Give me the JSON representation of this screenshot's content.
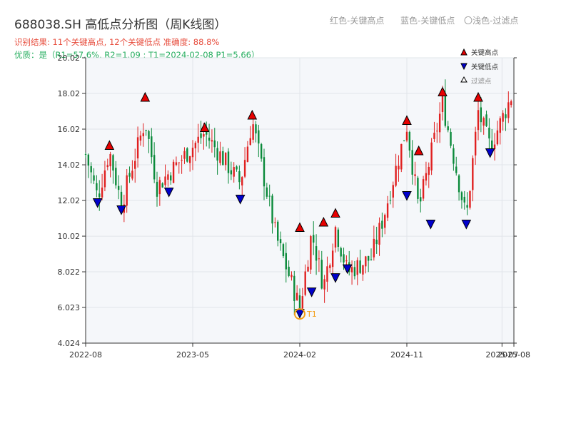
{
  "header": {
    "title": "688038.SH 高低点分析图（周K线图）",
    "legend_red": "红色-关键高点",
    "legend_blue": "蓝色-关键低点",
    "legend_light": "〇浅色-过滤点",
    "result_line": "识别结果: 11个关键高点, 12个关键低点   准确度: 88.8%",
    "quality_line": "优质：是（R1=57.6%, R2=1.09 ; T1=2024-02-08 P1=5.66）"
  },
  "legend": {
    "high_label": "关键高点",
    "low_label": "关键低点",
    "filtered_label": "过滤点"
  },
  "colors": {
    "up": "#e02020",
    "down": "#0a8a3a",
    "high_marker": "#e60000",
    "low_marker": "#0000cc",
    "t1_marker": "#f39c12",
    "plot_bg": "#f5f7fa"
  },
  "chart_data": {
    "type": "candlestick",
    "ylim": [
      4.024,
      20.02
    ],
    "y_ticks": [
      "4.024",
      "6.023",
      "8.022",
      "10.02",
      "12.02",
      "14.02",
      "16.02",
      "18.02",
      "20.02"
    ],
    "x_range": [
      "2022-08",
      "2025-08"
    ],
    "x_ticks": [
      "2022-08",
      "2023-05",
      "2024-02",
      "2024-11",
      "2025-07",
      "2025-08"
    ],
    "price_path": [
      [
        "2022-08",
        14.6
      ],
      [
        "2022-09",
        12.2
      ],
      [
        "2022-10",
        14.8
      ],
      [
        "2022-11",
        11.8
      ],
      [
        "2023-01",
        16.5
      ],
      [
        "2023-02",
        12.8
      ],
      [
        "2023-06",
        15.8
      ],
      [
        "2023-09",
        13.0
      ],
      [
        "2023-10",
        16.5
      ],
      [
        "2023-12",
        10.0
      ],
      [
        "2024-02",
        6.0
      ],
      [
        "2024-03",
        10.2
      ],
      [
        "2024-04",
        7.2
      ],
      [
        "2024-05",
        10.5
      ],
      [
        "2024-06",
        8.0
      ],
      [
        "2024-08",
        8.8
      ],
      [
        "2024-09",
        11.0
      ],
      [
        "2024-11",
        16.2
      ],
      [
        "2024-12",
        11.5
      ],
      [
        "2025-02",
        17.5
      ],
      [
        "2025-04",
        11.0
      ],
      [
        "2025-05",
        17.0
      ],
      [
        "2025-06",
        15.0
      ],
      [
        "2025-08",
        18.2
      ]
    ],
    "key_highs": [
      {
        "date": "2022-10",
        "price": 14.8
      },
      {
        "date": "2023-01",
        "price": 17.5
      },
      {
        "date": "2023-06",
        "price": 15.8
      },
      {
        "date": "2023-10",
        "price": 16.5
      },
      {
        "date": "2024-02",
        "price": 10.2
      },
      {
        "date": "2024-04",
        "price": 10.5
      },
      {
        "date": "2024-05",
        "price": 11.0
      },
      {
        "date": "2024-11",
        "price": 16.2
      },
      {
        "date": "2024-12",
        "price": 14.5
      },
      {
        "date": "2025-02",
        "price": 17.8
      },
      {
        "date": "2025-05",
        "price": 17.5
      }
    ],
    "key_lows": [
      {
        "date": "2022-09",
        "price": 12.2
      },
      {
        "date": "2022-11",
        "price": 11.8
      },
      {
        "date": "2023-03",
        "price": 12.8
      },
      {
        "date": "2023-09",
        "price": 12.4
      },
      {
        "date": "2024-02",
        "price": 6.0
      },
      {
        "date": "2024-03",
        "price": 7.2
      },
      {
        "date": "2024-05",
        "price": 8.0
      },
      {
        "date": "2024-06",
        "price": 8.5
      },
      {
        "date": "2024-11",
        "price": 12.6
      },
      {
        "date": "2025-01",
        "price": 11.0
      },
      {
        "date": "2025-04",
        "price": 11.0
      },
      {
        "date": "2025-06",
        "price": 15.0
      }
    ],
    "t1": {
      "date": "2024-02",
      "price": 5.66,
      "label": "T1"
    },
    "grid": true,
    "legend_position": "top-right"
  }
}
